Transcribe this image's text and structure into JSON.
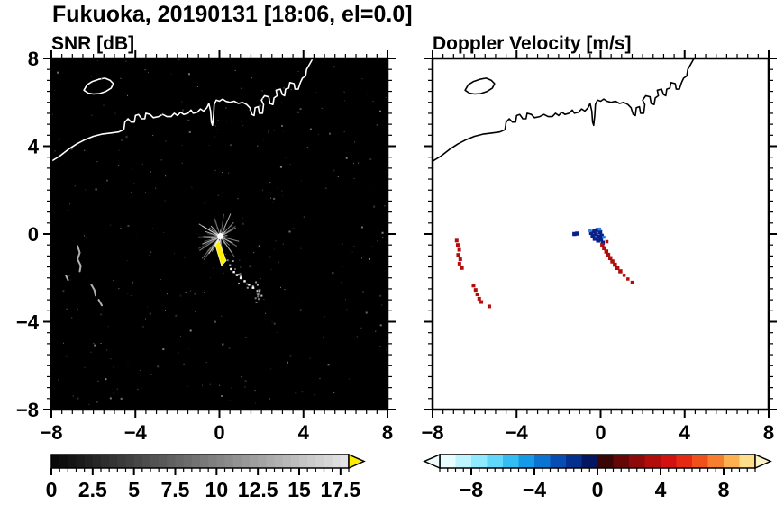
{
  "header": {
    "title": "Fukuoka, 20190131 [18:06, el=0.0]"
  },
  "chart_data": [
    {
      "type": "heatmap",
      "title": "SNR [dB]",
      "xlim": [
        -8,
        8
      ],
      "ylim": [
        -8,
        8
      ],
      "xticks": [
        -8,
        -4,
        0,
        4,
        8
      ],
      "yticks": [
        8,
        4,
        0,
        -4,
        -8
      ],
      "minor_step": 0.5,
      "show_y_labels": true,
      "background": "#000000",
      "coast_color": "#ffffff",
      "colorbar": {
        "style": "grayscale",
        "min": 0,
        "max": 18,
        "labels": [
          0,
          2.5,
          5,
          7.5,
          10,
          12.5,
          15,
          17.5
        ],
        "over_arrow": "#ffec00"
      },
      "features": {
        "speckles": {
          "seed": 42,
          "count": 330
        },
        "trail_speckles": {
          "seed": 7,
          "count": 26,
          "from": [
            0.25,
            -1.05
          ],
          "to": [
            2.3,
            -3.3
          ],
          "jitter": 0.25
        },
        "squiggles": [
          [
            [
              -6.75,
              -0.55
            ],
            [
              -6.65,
              -0.85
            ],
            [
              -6.75,
              -1.15
            ],
            [
              -6.6,
              -1.45
            ],
            [
              -6.65,
              -1.7
            ]
          ],
          [
            [
              -6.1,
              -2.3
            ],
            [
              -5.95,
              -2.55
            ],
            [
              -5.9,
              -2.8
            ]
          ],
          [
            [
              -5.75,
              -3.0
            ],
            [
              -5.6,
              -3.25
            ]
          ],
          [
            [
              -7.3,
              -1.9
            ],
            [
              -7.2,
              -2.1
            ]
          ]
        ],
        "spokes": {
          "seed": 11,
          "count": 44,
          "center": [
            0.05,
            -0.12
          ],
          "r_min": 0.25,
          "r_max": 1.35
        },
        "core_polygon": [
          [
            -0.02,
            -0.3
          ],
          [
            0.32,
            -1.22
          ],
          [
            0.1,
            -1.45
          ],
          [
            -0.2,
            -0.5
          ]
        ],
        "core_color": "#ffee00",
        "center_dot": [
          0.05,
          -0.1
        ],
        "trail_dots": [
          [
            0.5,
            -1.55
          ],
          [
            0.64,
            -1.68
          ],
          [
            0.78,
            -1.82
          ],
          [
            0.96,
            -1.96
          ],
          [
            1.15,
            -2.1
          ],
          [
            1.36,
            -2.26
          ],
          [
            1.56,
            -2.4
          ]
        ]
      }
    },
    {
      "type": "heatmap",
      "title": "Doppler Velocity [m/s]",
      "xlim": [
        -8,
        8
      ],
      "ylim": [
        -8,
        8
      ],
      "xticks": [
        -8,
        -4,
        0,
        4,
        8
      ],
      "yticks": [
        8,
        4,
        0,
        -4,
        -8
      ],
      "minor_step": 0.5,
      "show_y_labels": false,
      "background": "#ffffff",
      "coast_color": "#000000",
      "colorbar": {
        "style": "polar",
        "min": -10,
        "max": 10,
        "labels": [
          -8,
          -4,
          0,
          4,
          8
        ],
        "under_arrow": "#effdff",
        "over_arrow": "#fff3c8",
        "colors": [
          "#e8fdff",
          "#bdf4ff",
          "#8fe9ff",
          "#5fd8fb",
          "#34bdf2",
          "#149ae6",
          "#0b74d0",
          "#084eb2",
          "#063090",
          "#041660",
          "#3a0505",
          "#650707",
          "#8e0909",
          "#b40b0b",
          "#d31111",
          "#e62a12",
          "#f0511b",
          "#f77e2e",
          "#fcb050",
          "#ffde8a"
        ]
      },
      "features": {
        "red_color": "#b40b0b",
        "blue_color": "#08208a",
        "light_blue_color": "#2e7fe8",
        "red_points_left": [
          [
            -6.8,
            -0.5
          ],
          [
            -6.73,
            -0.72
          ],
          [
            -6.78,
            -0.95
          ],
          [
            -6.68,
            -1.15
          ],
          [
            -6.72,
            -1.35
          ],
          [
            -6.6,
            -1.55
          ],
          [
            -6.85,
            -0.3
          ]
        ],
        "red_points_left2": [
          [
            -6.05,
            -2.35
          ],
          [
            -5.95,
            -2.55
          ],
          [
            -5.87,
            -2.75
          ],
          [
            -5.78,
            -2.95
          ],
          [
            -5.68,
            -3.1
          ],
          [
            -5.3,
            -3.3
          ]
        ],
        "blue_points": [
          [
            -0.45,
            0.05
          ],
          [
            -0.3,
            0.12
          ],
          [
            -0.15,
            0.18
          ],
          [
            -0.02,
            0.08
          ],
          [
            -0.38,
            -0.08
          ],
          [
            -0.22,
            -0.02
          ],
          [
            -0.08,
            -0.12
          ],
          [
            0.05,
            -0.08
          ],
          [
            -0.28,
            -0.22
          ],
          [
            -0.12,
            -0.3
          ],
          [
            0.02,
            -0.25
          ],
          [
            0.1,
            -0.4
          ],
          [
            -1.25,
            0.0
          ],
          [
            -1.12,
            0.02
          ]
        ],
        "light_blue_points": [
          [
            -0.5,
            0.15
          ],
          [
            -0.05,
            0.22
          ],
          [
            0.15,
            -0.15
          ]
        ],
        "red_streak": [
          [
            0.08,
            -0.5
          ],
          [
            0.17,
            -0.65
          ],
          [
            0.27,
            -0.8
          ],
          [
            0.36,
            -0.95
          ],
          [
            0.46,
            -1.1
          ],
          [
            0.56,
            -1.25
          ],
          [
            0.68,
            -1.4
          ],
          [
            0.8,
            -1.55
          ],
          [
            0.94,
            -1.7
          ]
        ],
        "red_scatter": [
          [
            1.12,
            -1.88
          ],
          [
            1.3,
            -2.05
          ],
          [
            1.5,
            -2.2
          ],
          [
            0.3,
            -0.35
          ]
        ]
      }
    }
  ],
  "coastline": {
    "mainland": [
      [
        -8.2,
        3.2
      ],
      [
        -7.6,
        3.55
      ],
      [
        -7.2,
        3.85
      ],
      [
        -6.8,
        4.1
      ],
      [
        -6.4,
        4.3
      ],
      [
        -6.0,
        4.45
      ],
      [
        -5.6,
        4.55
      ],
      [
        -5.2,
        4.6
      ],
      [
        -4.8,
        4.65
      ],
      [
        -4.55,
        4.75
      ],
      [
        -4.5,
        5.1
      ],
      [
        -4.35,
        5.25
      ],
      [
        -4.2,
        5.1
      ],
      [
        -4.05,
        5.1
      ],
      [
        -4.0,
        5.4
      ],
      [
        -3.85,
        5.45
      ],
      [
        -3.7,
        5.25
      ],
      [
        -3.55,
        5.25
      ],
      [
        -3.5,
        5.5
      ],
      [
        -3.3,
        5.45
      ],
      [
        -3.15,
        5.3
      ],
      [
        -2.9,
        5.35
      ],
      [
        -2.7,
        5.45
      ],
      [
        -2.5,
        5.35
      ],
      [
        -2.3,
        5.35
      ],
      [
        -2.15,
        5.5
      ],
      [
        -2.0,
        5.4
      ],
      [
        -1.85,
        5.55
      ],
      [
        -1.7,
        5.45
      ],
      [
        -1.5,
        5.5
      ],
      [
        -1.35,
        5.65
      ],
      [
        -1.25,
        5.5
      ],
      [
        -1.05,
        5.55
      ],
      [
        -0.9,
        5.7
      ],
      [
        -0.75,
        5.6
      ],
      [
        -0.6,
        5.75
      ],
      [
        -0.5,
        5.95
      ],
      [
        -0.42,
        5.6
      ],
      [
        -0.38,
        5.1
      ],
      [
        -0.33,
        4.95
      ],
      [
        -0.28,
        5.4
      ],
      [
        -0.25,
        5.9
      ],
      [
        -0.15,
        6.1
      ],
      [
        0.0,
        6.05
      ],
      [
        0.15,
        6.15
      ],
      [
        0.3,
        6.05
      ],
      [
        0.5,
        6.0
      ],
      [
        0.7,
        6.05
      ],
      [
        0.9,
        5.95
      ],
      [
        1.1,
        6.0
      ],
      [
        1.3,
        5.9
      ],
      [
        1.45,
        5.75
      ],
      [
        1.55,
        5.45
      ],
      [
        1.65,
        5.4
      ],
      [
        1.7,
        5.75
      ],
      [
        1.85,
        5.8
      ],
      [
        1.9,
        5.5
      ],
      [
        2.05,
        5.5
      ],
      [
        2.1,
        5.9
      ],
      [
        2.0,
        6.1
      ],
      [
        2.15,
        6.3
      ],
      [
        2.35,
        6.25
      ],
      [
        2.4,
        5.95
      ],
      [
        2.55,
        5.9
      ],
      [
        2.6,
        6.2
      ],
      [
        2.75,
        6.3
      ],
      [
        2.7,
        6.55
      ],
      [
        2.9,
        6.6
      ],
      [
        3.0,
        6.35
      ],
      [
        3.1,
        6.3
      ],
      [
        3.15,
        6.6
      ],
      [
        3.3,
        6.65
      ],
      [
        3.35,
        6.9
      ],
      [
        3.55,
        6.85
      ],
      [
        3.6,
        6.6
      ],
      [
        3.75,
        6.6
      ],
      [
        3.85,
        6.9
      ],
      [
        3.95,
        7.1
      ],
      [
        4.1,
        7.2
      ],
      [
        4.15,
        7.5
      ],
      [
        4.3,
        7.75
      ],
      [
        4.5,
        8.1
      ]
    ],
    "island": [
      [
        -6.45,
        6.55
      ],
      [
        -6.3,
        6.8
      ],
      [
        -6.05,
        6.95
      ],
      [
        -5.75,
        7.05
      ],
      [
        -5.45,
        7.1
      ],
      [
        -5.2,
        7.0
      ],
      [
        -5.05,
        6.85
      ],
      [
        -5.15,
        6.65
      ],
      [
        -5.4,
        6.5
      ],
      [
        -5.7,
        6.4
      ],
      [
        -6.0,
        6.38
      ],
      [
        -6.25,
        6.42
      ]
    ]
  }
}
